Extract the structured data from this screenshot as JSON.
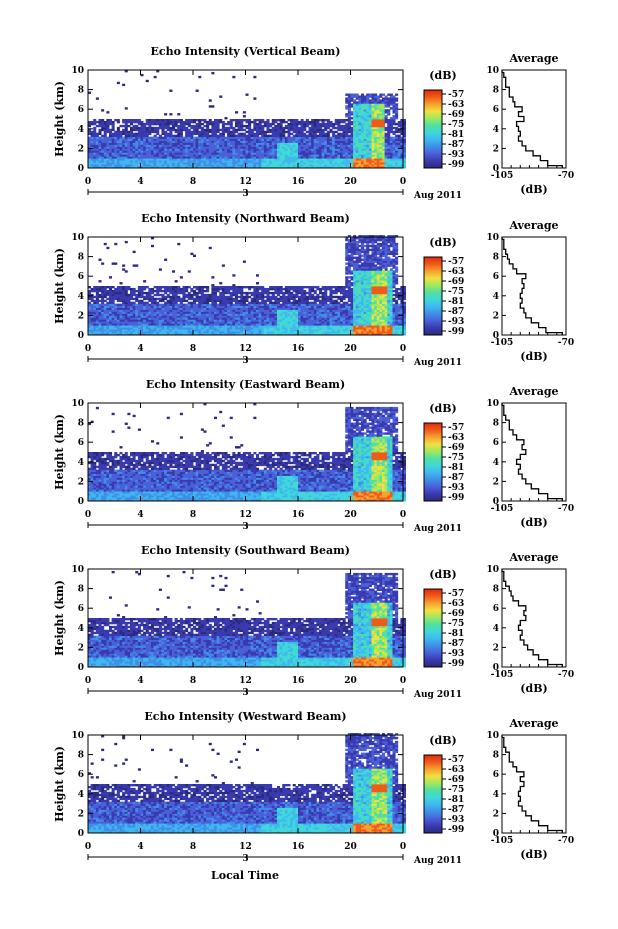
{
  "figure": {
    "x_axis_title": "Local Time",
    "date_label": "Aug 2011",
    "day_label": "3",
    "colorbar_unit": "(dB)",
    "colorbar_ticks": [
      "-57",
      "-63",
      "-69",
      "-75",
      "-81",
      "-87",
      "-93",
      "-99"
    ],
    "average_title": "Average",
    "average_xlabel": "(dB)",
    "average_xticks": [
      "-105",
      "-70"
    ],
    "y_axis_title": "Height (km)",
    "y_ticks": [
      "0",
      "2",
      "4",
      "6",
      "8",
      "10"
    ],
    "x_ticks": [
      "0",
      "4",
      "8",
      "12",
      "16",
      "20",
      "0"
    ]
  },
  "colors": {
    "colormap": [
      "#2a2a7a",
      "#3a3ab0",
      "#4a60d8",
      "#3f8fe8",
      "#3fb8f0",
      "#40d8d8",
      "#50e0a0",
      "#a0e860",
      "#f0e040",
      "#f8a030",
      "#f05a1a",
      "#e02a10"
    ]
  },
  "chart_data": [
    {
      "type": "heatmap",
      "title": "Echo Intensity (Vertical Beam)",
      "xlabel": "",
      "ylabel": "Height (km)",
      "xlim": [
        0,
        24
      ],
      "ylim": [
        0,
        10
      ],
      "zlim_db": [
        -99,
        -57
      ],
      "features": {
        "layer_top_km": 5.0,
        "upper_patch_top_km": 7.5,
        "convective_tower_hours": [
          20,
          22.5
        ],
        "peak_echo_height_km": 4.5,
        "secondary_plume_hour": 15
      },
      "average_profile": {
        "height_km": [
          0,
          0.5,
          1,
          1.5,
          2,
          2.5,
          3,
          3.5,
          4,
          4.5,
          5,
          5.5,
          6,
          6.5,
          7,
          7.5,
          8,
          8.5,
          9,
          9.5,
          10
        ],
        "db": [
          -72,
          -80,
          -84,
          -88,
          -92,
          -94,
          -96,
          -95,
          -96,
          -97,
          -93,
          -96,
          -94,
          -98,
          -99,
          -101,
          -101,
          -103,
          -103,
          -104,
          -105
        ]
      }
    },
    {
      "type": "heatmap",
      "title": "Echo Intensity (Northward Beam)",
      "xlabel": "",
      "ylabel": "Height (km)",
      "xlim": [
        0,
        24
      ],
      "ylim": [
        0,
        10
      ],
      "zlim_db": [
        -99,
        -57
      ],
      "features": {
        "layer_top_km": 5.0,
        "upper_patch_top_km": 10,
        "convective_tower_hours": [
          20,
          23
        ],
        "peak_echo_height_km": 4.5,
        "secondary_plume_hour": 15
      },
      "average_profile": {
        "height_km": [
          0,
          0.5,
          1,
          1.5,
          2,
          2.5,
          3,
          3.5,
          4,
          4.5,
          5,
          5.5,
          6,
          6.5,
          7,
          7.5,
          8,
          8.5,
          9,
          9.5,
          10
        ],
        "db": [
          -72,
          -81,
          -85,
          -89,
          -92,
          -93,
          -95,
          -94,
          -95,
          -94,
          -93,
          -94,
          -92,
          -97,
          -99,
          -101,
          -102,
          -103,
          -104,
          -104,
          -105
        ]
      }
    },
    {
      "type": "heatmap",
      "title": "Echo Intensity (Eastward Beam)",
      "xlabel": "",
      "ylabel": "Height (km)",
      "xlim": [
        0,
        24
      ],
      "ylim": [
        0,
        10
      ],
      "zlim_db": [
        -99,
        -57
      ],
      "features": {
        "layer_top_km": 5.0,
        "upper_patch_top_km": 9.5,
        "convective_tower_hours": [
          20,
          23
        ],
        "peak_echo_height_km": 4.5,
        "secondary_plume_hour": 15
      },
      "average_profile": {
        "height_km": [
          0,
          0.5,
          1,
          1.5,
          2,
          2.5,
          3,
          3.5,
          4,
          4.5,
          5,
          5.5,
          6,
          6.5,
          7,
          7.5,
          8,
          8.5,
          9,
          9.5,
          10
        ],
        "db": [
          -72,
          -80,
          -85,
          -89,
          -92,
          -94,
          -96,
          -95,
          -97,
          -95,
          -92,
          -94,
          -93,
          -97,
          -99,
          -101,
          -101,
          -103,
          -104,
          -104,
          -105
        ]
      }
    },
    {
      "type": "heatmap",
      "title": "Echo Intensity (Southward Beam)",
      "xlabel": "",
      "ylabel": "Height (km)",
      "xlim": [
        0,
        24
      ],
      "ylim": [
        0,
        10
      ],
      "zlim_db": [
        -99,
        -57
      ],
      "features": {
        "layer_top_km": 5.0,
        "upper_patch_top_km": 9.5,
        "convective_tower_hours": [
          20,
          23
        ],
        "peak_echo_height_km": 4.5,
        "secondary_plume_hour": 15
      },
      "average_profile": {
        "height_km": [
          0,
          0.5,
          1,
          1.5,
          2,
          2.5,
          3,
          3.5,
          4,
          4.5,
          5,
          5.5,
          6,
          6.5,
          7,
          7.5,
          8,
          8.5,
          9,
          9.5,
          10
        ],
        "db": [
          -72,
          -80,
          -85,
          -88,
          -91,
          -93,
          -95,
          -94,
          -96,
          -95,
          -92,
          -93,
          -92,
          -96,
          -99,
          -100,
          -101,
          -103,
          -104,
          -104,
          -105
        ]
      }
    },
    {
      "type": "heatmap",
      "title": "Echo Intensity (Westward Beam)",
      "xlabel": "Local Time",
      "ylabel": "Height (km)",
      "xlim": [
        0,
        24
      ],
      "ylim": [
        0,
        10
      ],
      "zlim_db": [
        -99,
        -57
      ],
      "features": {
        "layer_top_km": 5.0,
        "upper_patch_top_km": 10,
        "convective_tower_hours": [
          20,
          23
        ],
        "peak_echo_height_km": 4.5,
        "secondary_plume_hour": 15
      },
      "average_profile": {
        "height_km": [
          0,
          0.5,
          1,
          1.5,
          2,
          2.5,
          3,
          3.5,
          4,
          4.5,
          5,
          5.5,
          6,
          6.5,
          7,
          7.5,
          8,
          8.5,
          9,
          9.5,
          10
        ],
        "db": [
          -72,
          -80,
          -85,
          -89,
          -92,
          -94,
          -96,
          -95,
          -96,
          -95,
          -93,
          -95,
          -93,
          -97,
          -99,
          -101,
          -101,
          -103,
          -104,
          -104,
          -105
        ]
      }
    }
  ]
}
